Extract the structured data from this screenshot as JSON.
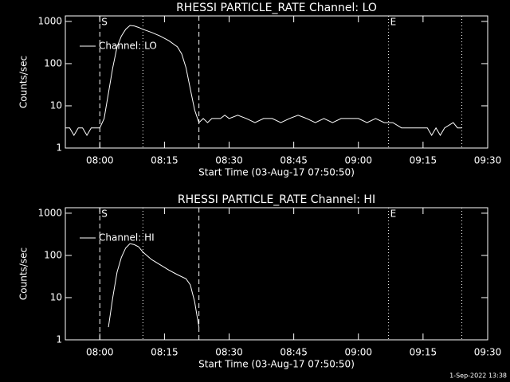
{
  "chart_data": [
    {
      "type": "line",
      "title": "RHESSI PARTICLE_RATE Channel: LO",
      "xlabel": "Start Time (03-Aug-17 07:50:50)",
      "ylabel": "Counts/sec",
      "x": [
        "07:52",
        "07:53",
        "07:54",
        "07:55",
        "07:56",
        "07:57",
        "07:58",
        "07:59",
        "08:00",
        "08:01",
        "08:02",
        "08:03",
        "08:04",
        "08:05",
        "08:06",
        "08:07",
        "08:08",
        "08:09",
        "08:10",
        "08:12",
        "08:14",
        "08:16",
        "08:18",
        "08:19",
        "08:20",
        "08:21",
        "08:22",
        "08:23",
        "08:24",
        "08:25",
        "08:26",
        "08:28",
        "08:29",
        "08:30",
        "08:32",
        "08:34",
        "08:36",
        "08:38",
        "08:40",
        "08:42",
        "08:44",
        "08:46",
        "08:48",
        "08:50",
        "08:52",
        "08:54",
        "08:56",
        "08:58",
        "09:00",
        "09:02",
        "09:04",
        "09:06",
        "09:08",
        "09:10",
        "09:12",
        "09:14",
        "09:16",
        "09:17",
        "09:18",
        "09:19",
        "09:20",
        "09:22",
        "09:23",
        "09:24"
      ],
      "series": [
        {
          "name": "Channel: LO",
          "color": "#ffffff",
          "values": [
            3,
            3,
            2,
            3,
            3,
            2,
            3,
            3,
            3,
            5,
            20,
            80,
            250,
            450,
            650,
            800,
            780,
            720,
            650,
            550,
            450,
            350,
            250,
            170,
            80,
            25,
            8,
            4,
            5,
            4,
            5,
            5,
            6,
            5,
            6,
            5,
            4,
            5,
            5,
            4,
            5,
            6,
            5,
            4,
            5,
            4,
            5,
            5,
            5,
            4,
            5,
            4,
            4,
            3,
            3,
            3,
            3,
            2,
            3,
            2,
            3,
            4,
            3,
            3
          ]
        }
      ],
      "xlim": [
        "07:52",
        "09:30"
      ],
      "xticks": [
        "08:00",
        "08:15",
        "08:30",
        "08:45",
        "09:00",
        "09:15",
        "09:30"
      ],
      "ylim": [
        1,
        1350
      ],
      "yticks": [
        1,
        10,
        100,
        1000
      ],
      "log_scale": true,
      "annotations": [
        {
          "x": "08:00",
          "label": "S"
        },
        {
          "x": "09:07",
          "label": "E"
        }
      ],
      "dashed_lines": [
        "08:00",
        "08:23"
      ],
      "dotted_lines": [
        "08:10",
        "09:07",
        "09:24"
      ]
    },
    {
      "type": "line",
      "title": "RHESSI PARTICLE_RATE Channel: HI",
      "xlabel": "Start Time (03-Aug-17 07:50:50)",
      "ylabel": "Counts/sec",
      "x": [
        "08:02",
        "08:03",
        "08:04",
        "08:05",
        "08:06",
        "08:07",
        "08:08",
        "08:09",
        "08:10",
        "08:12",
        "08:14",
        "08:16",
        "08:18",
        "08:20",
        "08:21",
        "08:22",
        "08:23"
      ],
      "series": [
        {
          "name": "Channel: HI",
          "color": "#ffffff",
          "values": [
            2,
            10,
            40,
            90,
            150,
            190,
            180,
            160,
            120,
            80,
            60,
            45,
            35,
            28,
            20,
            8,
            2
          ]
        }
      ],
      "xlim": [
        "07:52",
        "09:30"
      ],
      "xticks": [
        "08:00",
        "08:15",
        "08:30",
        "08:45",
        "09:00",
        "09:15",
        "09:30"
      ],
      "ylim": [
        1,
        1350
      ],
      "yticks": [
        1,
        10,
        100,
        1000
      ],
      "log_scale": true,
      "annotations": [
        {
          "x": "08:00",
          "label": "S"
        },
        {
          "x": "09:07",
          "label": "E"
        }
      ],
      "dashed_lines": [
        "08:00",
        "08:23"
      ],
      "dotted_lines": [
        "08:10",
        "09:07",
        "09:24"
      ]
    }
  ],
  "footer": "1-Sep-2022 13:38"
}
